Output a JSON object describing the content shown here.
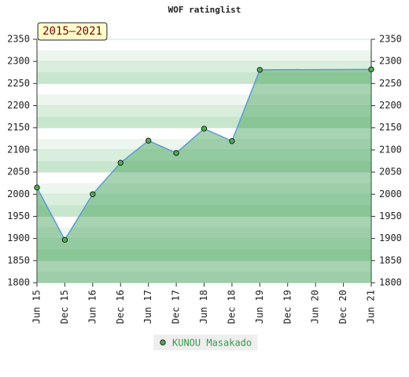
{
  "chart_data": {
    "type": "line",
    "title": "WOF ratinglist",
    "annotation": "2015–2021",
    "categories": [
      "Jun 15",
      "Dec 15",
      "Jun 16",
      "Dec 16",
      "Jun 17",
      "Dec 17",
      "Jun 18",
      "Dec 18",
      "Jun 19",
      "Dec 19",
      "Jun 20",
      "Dec 20",
      "Jun 21"
    ],
    "series": [
      {
        "name": "KUNOU Masakado",
        "color": "#5b9bd5",
        "marker_color": "#4caf50",
        "values": [
          2015,
          1897,
          2000,
          2071,
          2121,
          2093,
          2148,
          2120,
          2281,
          null,
          null,
          null,
          2282
        ]
      }
    ],
    "connect_gaps": true,
    "ylim": [
      1800,
      2350
    ],
    "yticks": [
      1800,
      1850,
      1900,
      1950,
      2000,
      2050,
      2100,
      2150,
      2200,
      2250,
      2300,
      2350
    ],
    "grid": true,
    "legend": "bottom"
  }
}
